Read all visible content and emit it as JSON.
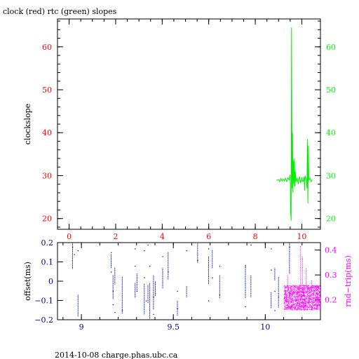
{
  "header": {
    "title": "clock (red) rtc (green) slopes"
  },
  "footer": {
    "text": "2014-10-08 charge.phas.ubc.ca"
  },
  "colors": {
    "frame": "#000000",
    "clock_axis": "#ff0000",
    "rtc_axis": "#00ff00",
    "offset_axis": "#0000aa",
    "rtt_axis": "#ff00ff",
    "rtc_series": "#00ee00",
    "offset_series": "#0000aa",
    "rtt_series": "#ff00ff"
  },
  "chart_data": [
    {
      "type": "line",
      "title": "clock (red) rtc (green) slopes",
      "ylabel": "clockslope",
      "xlim": [
        -0.5,
        10.8
      ],
      "ylim": [
        17.5,
        66.5
      ],
      "x_ticks": [
        0,
        2,
        4,
        6,
        8,
        10
      ],
      "y_ticks": [
        20,
        30,
        40,
        50,
        60
      ],
      "right_y_ticks": [
        20,
        30,
        40,
        50,
        60
      ],
      "x_tick_color": "red",
      "left_tick_color": "red",
      "right_tick_color": "green",
      "series": [
        {
          "color": "green",
          "points": [
            [
              8.9,
              28.9
            ],
            [
              9.0,
              29.1
            ],
            [
              9.05,
              28.6
            ],
            [
              9.1,
              29.3
            ],
            [
              9.15,
              28.7
            ],
            [
              9.2,
              29.2
            ],
            [
              9.25,
              28.8
            ],
            [
              9.3,
              29.4
            ],
            [
              9.35,
              28.6
            ],
            [
              9.4,
              29.5
            ],
            [
              9.45,
              29.0
            ],
            [
              9.5,
              30.2
            ],
            [
              9.52,
              21.5
            ],
            [
              9.54,
              19.5
            ],
            [
              9.56,
              64.5
            ],
            [
              9.58,
              27.0
            ],
            [
              9.6,
              40.0
            ],
            [
              9.62,
              26.0
            ],
            [
              9.64,
              33.5
            ],
            [
              9.66,
              28.0
            ],
            [
              9.68,
              34.0
            ],
            [
              9.7,
              27.5
            ],
            [
              9.72,
              31.0
            ],
            [
              9.75,
              28.5
            ],
            [
              9.8,
              29.5
            ],
            [
              9.85,
              28.0
            ],
            [
              9.9,
              29.8
            ],
            [
              9.95,
              28.3
            ],
            [
              10.0,
              29.6
            ],
            [
              10.05,
              28.5
            ],
            [
              10.1,
              29.7
            ],
            [
              10.12,
              26.5
            ],
            [
              10.14,
              30.0
            ],
            [
              10.2,
              28.9
            ],
            [
              10.22,
              27.0
            ],
            [
              10.24,
              38.5
            ],
            [
              10.26,
              23.5
            ],
            [
              10.28,
              37.0
            ],
            [
              10.3,
              29.0
            ],
            [
              10.35,
              29.4
            ],
            [
              10.4,
              28.6
            ],
            [
              10.45,
              29.2
            ]
          ]
        }
      ]
    },
    {
      "type": "scatter",
      "ylabel": "offset(ms)",
      "right_ylabel": "rnd−trip(ms)",
      "xlim": [
        8.87,
        10.3
      ],
      "ylim": [
        -0.2,
        0.2
      ],
      "right_ylim": [
        0.12,
        0.43
      ],
      "x_ticks": [
        9,
        9.5,
        10
      ],
      "y_ticks": [
        -0.2,
        -0.1,
        0,
        0.1,
        0.2
      ],
      "right_y_ticks": [
        0.2,
        0.3,
        0.4
      ],
      "series": [
        {
          "color": "blue",
          "axis": "left",
          "column_x": [
            8.95,
            8.98,
            9.16,
            9.17,
            9.18,
            9.22,
            9.29,
            9.3,
            9.34,
            9.36,
            9.37,
            9.39,
            9.4,
            9.44,
            9.47,
            9.52,
            9.57,
            9.63,
            9.69,
            9.71,
            9.75,
            9.89,
            9.92,
            10.03,
            10.05,
            10.07,
            10.13
          ],
          "points": [
            [
              8.95,
              0.18
            ],
            [
              8.96,
              0.14
            ],
            [
              8.98,
              0.16
            ],
            [
              9.16,
              0.15
            ],
            [
              9.16,
              0.05
            ],
            [
              9.17,
              -0.05
            ],
            [
              9.17,
              -0.12
            ],
            [
              9.18,
              -0.16
            ],
            [
              9.22,
              -0.15
            ],
            [
              9.29,
              0.17
            ],
            [
              9.29,
              0.08
            ],
            [
              9.3,
              -0.05
            ],
            [
              9.34,
              0.16
            ],
            [
              9.34,
              0.02
            ],
            [
              9.35,
              -0.1
            ],
            [
              9.36,
              0.19
            ],
            [
              9.37,
              0.08
            ],
            [
              9.39,
              -0.08
            ],
            [
              9.39,
              -0.17
            ],
            [
              9.44,
              0.13
            ],
            [
              9.47,
              0.05
            ],
            [
              9.52,
              -0.05
            ],
            [
              9.52,
              -0.14
            ],
            [
              9.57,
              0.16
            ],
            [
              9.63,
              0.11
            ],
            [
              9.69,
              0.17
            ],
            [
              9.69,
              -0.1
            ],
            [
              9.71,
              0.02
            ],
            [
              9.75,
              0.08
            ],
            [
              9.75,
              -0.07
            ],
            [
              9.89,
              0.08
            ],
            [
              9.89,
              -0.13
            ],
            [
              9.92,
              0.19
            ],
            [
              10.03,
              0.17
            ],
            [
              10.03,
              0.06
            ],
            [
              10.05,
              -0.05
            ],
            [
              10.05,
              -0.15
            ],
            [
              10.07,
              -0.08
            ],
            [
              10.13,
              0.18
            ]
          ]
        },
        {
          "color": "magenta",
          "axis": "right",
          "x_range": [
            10.1,
            10.3
          ],
          "y_range": [
            0.16,
            0.26
          ],
          "spikes": [
            [
              10.12,
              0.3
            ],
            [
              10.19,
              0.42
            ],
            [
              10.2,
              0.38
            ],
            [
              10.22,
              0.33
            ],
            [
              10.25,
              0.28
            ]
          ]
        }
      ]
    }
  ]
}
